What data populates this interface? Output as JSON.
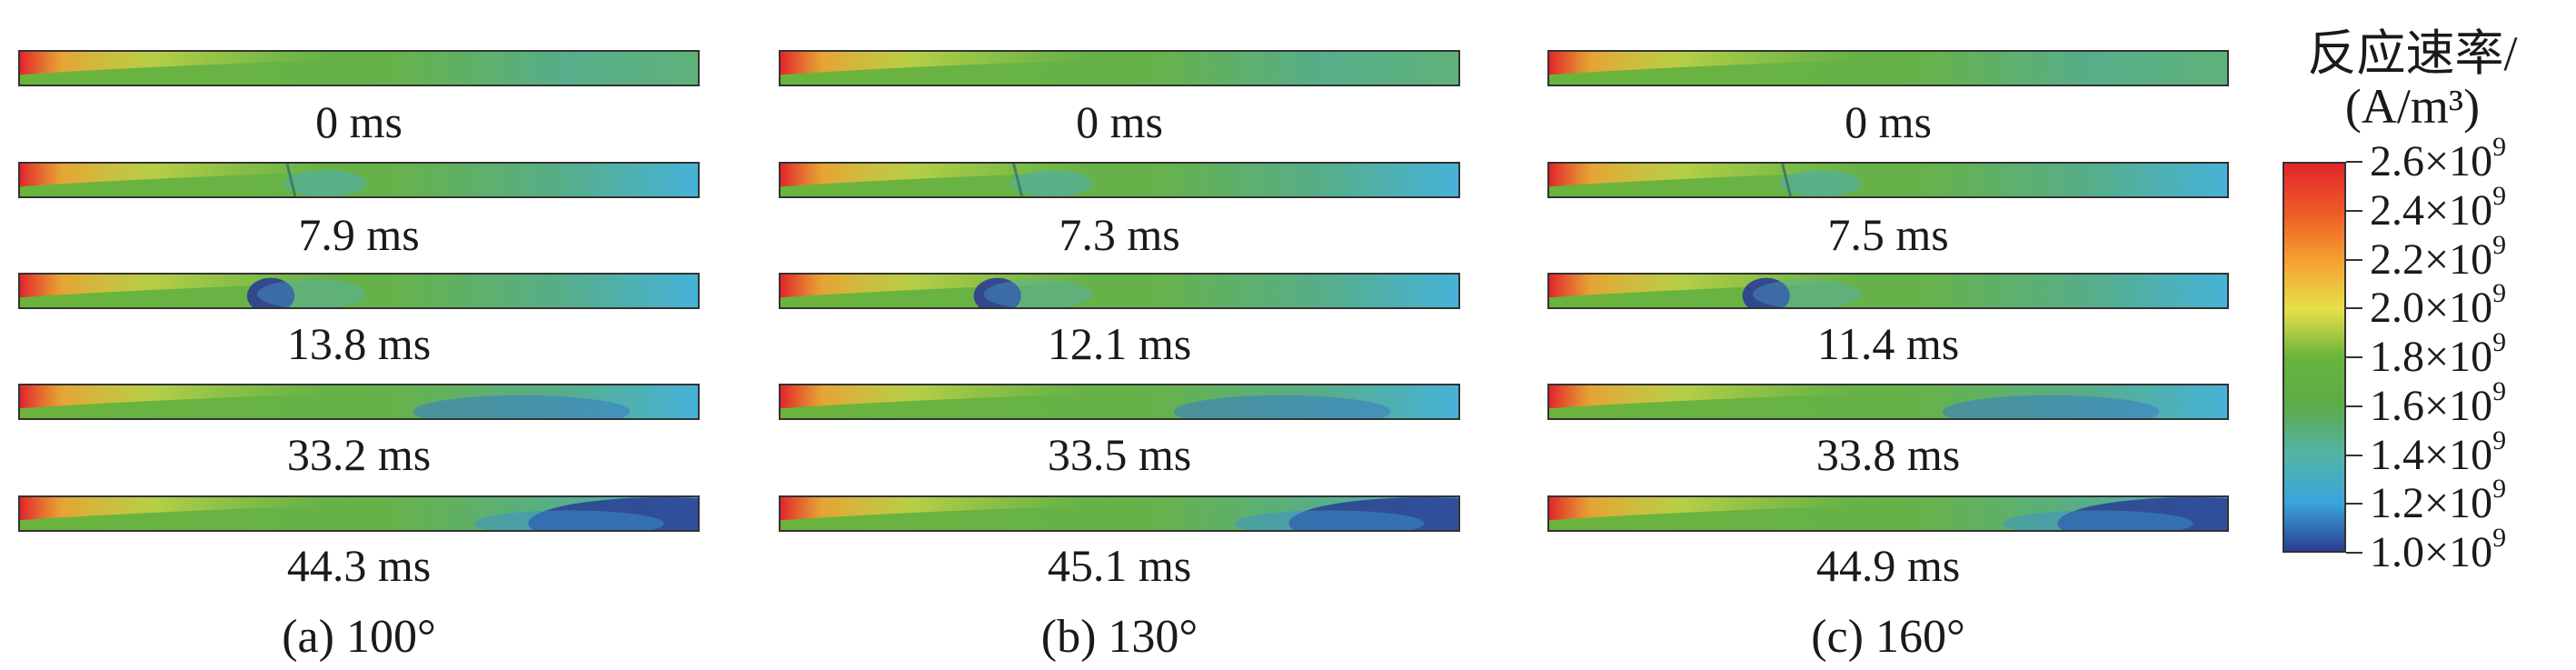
{
  "chart_data": {
    "type": "heatmap",
    "quantity": "反应速率",
    "unit": "(A/m³)",
    "colorbar": {
      "title_line1": "反应速率/",
      "title_line2": "(A/m³)",
      "min": 1000000000.0,
      "max": 2600000000.0,
      "tick_values": [
        2600000000.0,
        2400000000.0,
        2200000000.0,
        2000000000.0,
        1800000000.0,
        1600000000.0,
        1400000000.0,
        1200000000.0,
        1000000000.0
      ],
      "tick_mantissas": [
        "2.6×10",
        "2.4×10",
        "2.2×10",
        "2.0×10",
        "1.8×10",
        "1.6×10",
        "1.4×10",
        "1.2×10",
        "1.0×10"
      ],
      "tick_exponent": "9"
    },
    "panels": [
      {
        "caption": "(a) 100°",
        "angle_deg": 100,
        "frames": [
          {
            "time_label": "0 ms",
            "time_ms": 0,
            "bubble_position": null
          },
          {
            "time_label": "7.9 ms",
            "time_ms": 7.9,
            "bubble_position": 0.4
          },
          {
            "time_label": "13.8 ms",
            "time_ms": 13.8,
            "bubble_position": 0.37
          },
          {
            "time_label": "33.2 ms",
            "time_ms": 33.2,
            "bubble_position": 0.74
          },
          {
            "time_label": "44.3 ms",
            "time_ms": 44.3,
            "bubble_position": 0.95
          }
        ]
      },
      {
        "caption": "(b) 130°",
        "angle_deg": 130,
        "frames": [
          {
            "time_label": "0 ms",
            "time_ms": 0,
            "bubble_position": null
          },
          {
            "time_label": "7.3 ms",
            "time_ms": 7.3,
            "bubble_position": 0.35
          },
          {
            "time_label": "12.1 ms",
            "time_ms": 12.1,
            "bubble_position": 0.32
          },
          {
            "time_label": "33.5 ms",
            "time_ms": 33.5,
            "bubble_position": 0.74
          },
          {
            "time_label": "45.1 ms",
            "time_ms": 45.1,
            "bubble_position": 0.95
          }
        ]
      },
      {
        "caption": "(c) 160°",
        "angle_deg": 160,
        "frames": [
          {
            "time_label": "0 ms",
            "time_ms": 0,
            "bubble_position": null
          },
          {
            "time_label": "7.5 ms",
            "time_ms": 7.5,
            "bubble_position": 0.35
          },
          {
            "time_label": "11.4 ms",
            "time_ms": 11.4,
            "bubble_position": 0.32
          },
          {
            "time_label": "33.8 ms",
            "time_ms": 33.8,
            "bubble_position": 0.74
          },
          {
            "time_label": "44.9 ms",
            "time_ms": 44.9,
            "bubble_position": 0.95
          }
        ]
      }
    ]
  }
}
